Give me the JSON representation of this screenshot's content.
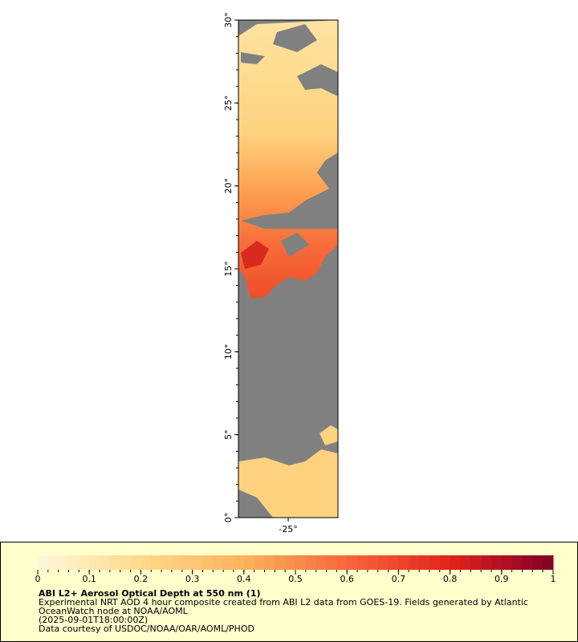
{
  "chart_data": {
    "type": "map",
    "xlim": [
      -28,
      -22
    ],
    "ylim": [
      0,
      30
    ],
    "xticks": [
      {
        "value": -25,
        "label": "-25°"
      }
    ],
    "yticks": [
      {
        "value": 0,
        "label": "0°"
      },
      {
        "value": 5,
        "label": "5°"
      },
      {
        "value": 10,
        "label": "10°"
      },
      {
        "value": 15,
        "label": "15°"
      },
      {
        "value": 20,
        "label": "20°"
      },
      {
        "value": 25,
        "label": "25°"
      },
      {
        "value": 30,
        "label": "30°"
      }
    ],
    "colorbar": {
      "lim": [
        0,
        1
      ],
      "ticks": [
        0,
        0.1,
        0.2,
        0.3,
        0.4,
        0.5,
        0.6,
        0.7,
        0.8,
        0.9,
        1
      ],
      "colors": [
        "#fff7dc",
        "#fed98a",
        "#fdb35c",
        "#f7663a",
        "#e3231c",
        "#800026"
      ]
    },
    "legend_title": "ABI L2+ Aerosol Optical Depth at 550 nm (1)",
    "legend_lines": [
      "Experimental NRT AOD 4 hour composite created from ABI L2 data from GOES-19. Fields generated by Atlantic",
      "OceanWatch node at NOAA/AOML",
      "(2025-09-01T18:00:00Z)",
      "Data courtesy of USDOC/NOAA/OAR/AOML/PHOD"
    ]
  }
}
